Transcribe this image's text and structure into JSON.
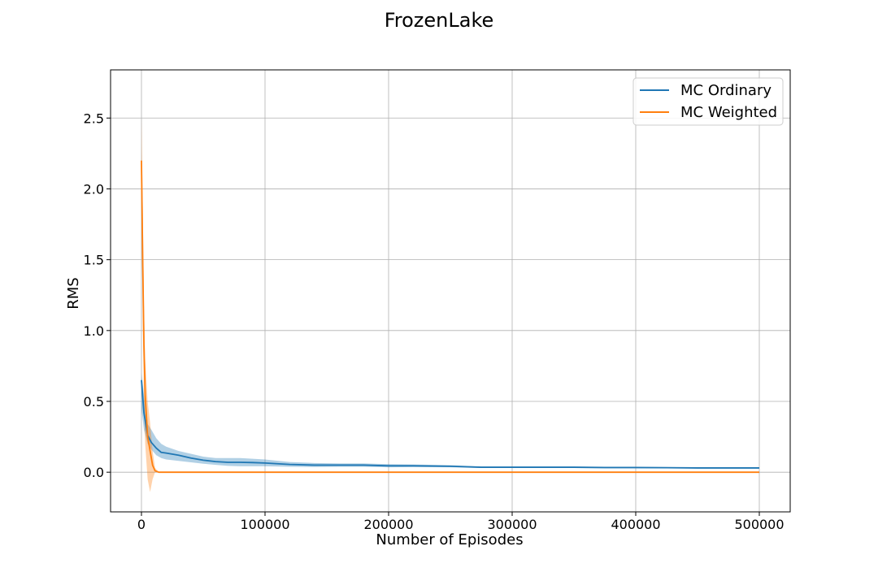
{
  "chart_data": {
    "type": "line",
    "title": "FrozenLake",
    "xlabel": "Number of Episodes",
    "ylabel": "RMS",
    "xlim": [
      -25000,
      525000
    ],
    "ylim": [
      -0.28,
      2.84
    ],
    "xticks": [
      0,
      100000,
      200000,
      300000,
      400000,
      500000
    ],
    "yticks": [
      0.0,
      0.5,
      1.0,
      1.5,
      2.0,
      2.5
    ],
    "xtick_labels": [
      "0",
      "100000",
      "200000",
      "300000",
      "400000",
      "500000"
    ],
    "ytick_labels": [
      "0.0",
      "0.5",
      "1.0",
      "1.5",
      "2.0",
      "2.5"
    ],
    "grid": true,
    "legend_position": "top-right",
    "series": [
      {
        "name": "MC Ordinary",
        "color": "#1f77b4",
        "band_color": "#1f77b4",
        "x": [
          0,
          2000,
          5000,
          8000,
          12000,
          16000,
          20000,
          30000,
          40000,
          50000,
          60000,
          70000,
          80000,
          90000,
          100000,
          120000,
          140000,
          160000,
          180000,
          200000,
          220000,
          250000,
          275000,
          300000,
          325000,
          350000,
          375000,
          400000,
          425000,
          450000,
          475000,
          500000
        ],
        "y": [
          0.65,
          0.42,
          0.26,
          0.21,
          0.17,
          0.14,
          0.135,
          0.12,
          0.1,
          0.085,
          0.075,
          0.07,
          0.07,
          0.068,
          0.065,
          0.055,
          0.05,
          0.05,
          0.05,
          0.045,
          0.045,
          0.042,
          0.035,
          0.035,
          0.035,
          0.035,
          0.033,
          0.033,
          0.032,
          0.03,
          0.03,
          0.03
        ],
        "lower": [
          0.45,
          0.3,
          0.2,
          0.16,
          0.12,
          0.1,
          0.09,
          0.08,
          0.07,
          0.06,
          0.052,
          0.045,
          0.042,
          0.042,
          0.042,
          0.038,
          0.037,
          0.038,
          0.038,
          0.035,
          0.036,
          0.035,
          0.03,
          0.03,
          0.03,
          0.03,
          0.029,
          0.029,
          0.028,
          0.026,
          0.026,
          0.026
        ],
        "upper": [
          0.7,
          0.55,
          0.34,
          0.3,
          0.24,
          0.2,
          0.18,
          0.15,
          0.13,
          0.11,
          0.1,
          0.1,
          0.1,
          0.095,
          0.09,
          0.072,
          0.065,
          0.062,
          0.062,
          0.057,
          0.055,
          0.05,
          0.04,
          0.04,
          0.04,
          0.04,
          0.037,
          0.037,
          0.036,
          0.034,
          0.034,
          0.034
        ]
      },
      {
        "name": "MC Weighted",
        "color": "#ff7f0e",
        "band_color": "#ff7f0e",
        "x": [
          0,
          1000,
          2000,
          3000,
          5000,
          7000,
          9000,
          11000,
          14000,
          20000,
          50000,
          100000,
          200000,
          300000,
          400000,
          500000
        ],
        "y": [
          2.2,
          1.5,
          0.9,
          0.55,
          0.25,
          0.15,
          0.05,
          0.01,
          0.0,
          0.0,
          0.0,
          0.0,
          0.0,
          0.0,
          0.0,
          0.0
        ],
        "lower": [
          1.9,
          1.1,
          0.5,
          0.2,
          -0.05,
          -0.14,
          -0.05,
          0.0,
          0.0,
          0.0,
          0.0,
          0.0,
          0.0,
          0.0,
          0.0,
          0.0
        ],
        "upper": [
          2.5,
          1.9,
          1.2,
          0.8,
          0.5,
          0.35,
          0.15,
          0.03,
          0.002,
          0.002,
          0.002,
          0.002,
          0.002,
          0.002,
          0.002,
          0.002
        ]
      }
    ]
  }
}
